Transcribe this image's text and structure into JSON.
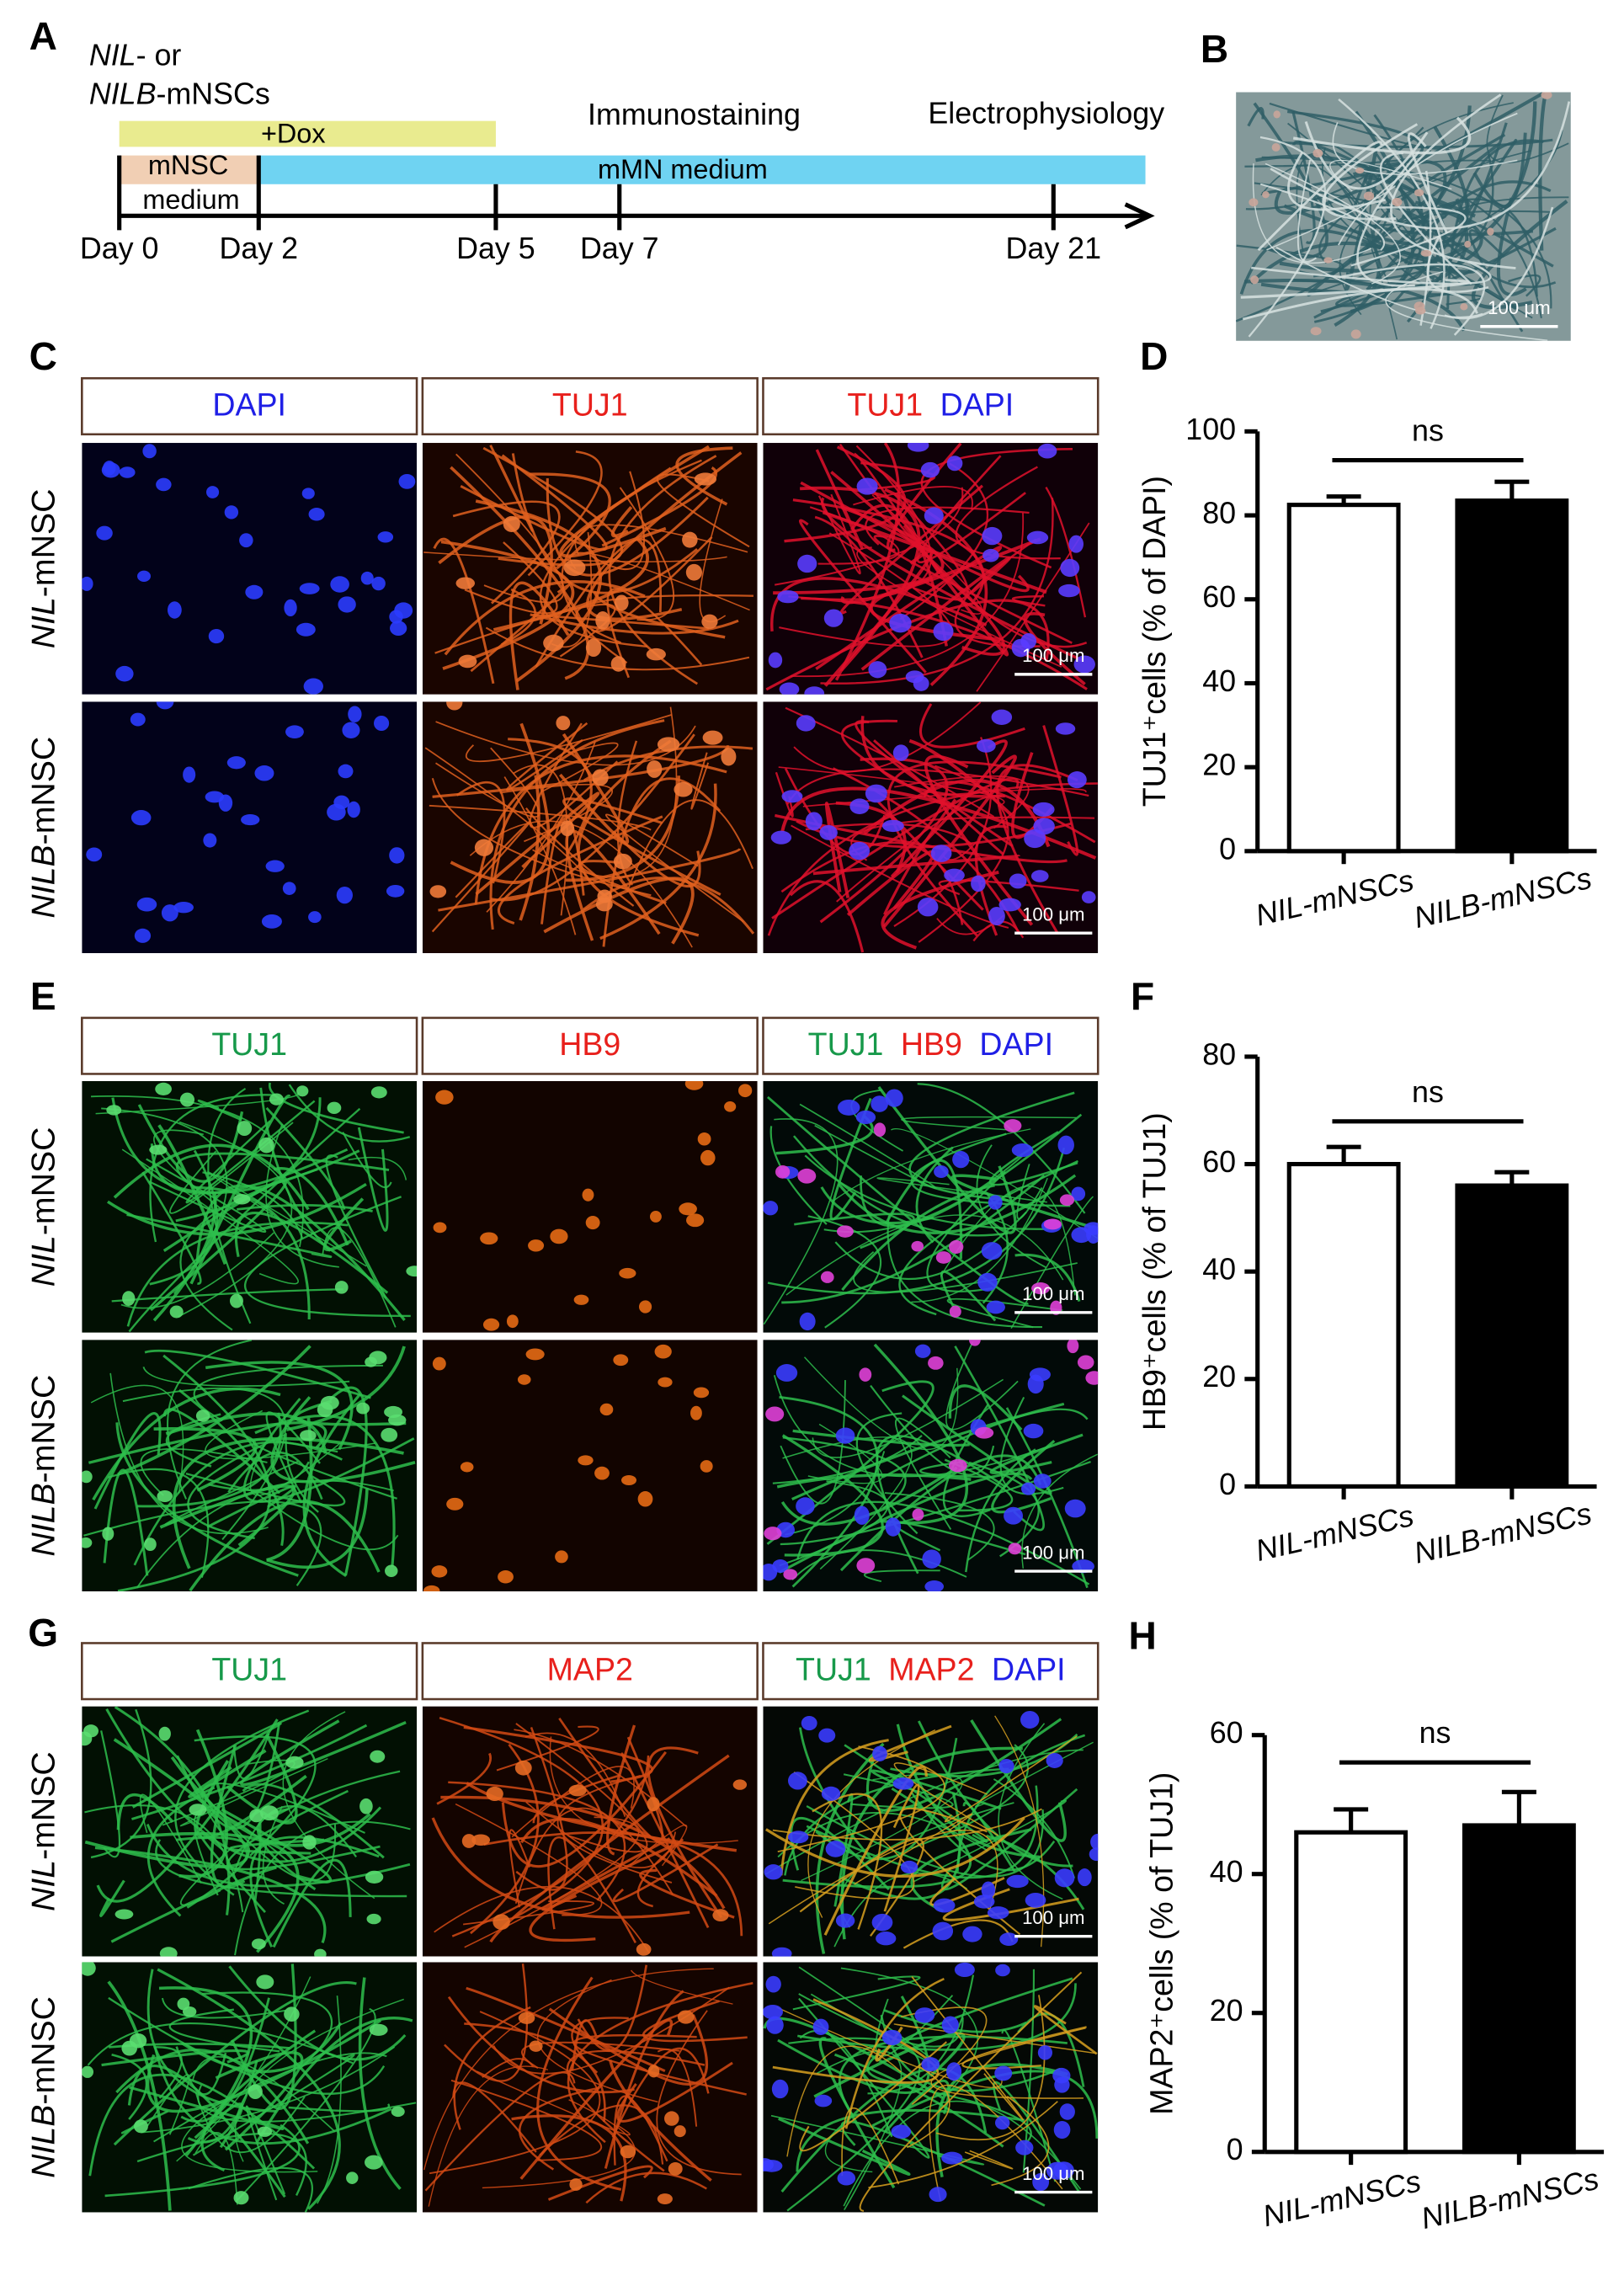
{
  "panel_labels": [
    "A",
    "B",
    "C",
    "D",
    "E",
    "F",
    "G",
    "H"
  ],
  "timeline": {
    "start_cells": [
      {
        "gene": "NIL",
        "rest": "- or"
      },
      {
        "gene": "NILB",
        "rest": "-mNSCs"
      }
    ],
    "dox": "+Dox",
    "nsc_medium": [
      "mNSC",
      "medium"
    ],
    "mn_medium": "mMN medium",
    "events": [
      "Immunostaining",
      "Electrophysiology"
    ],
    "days": [
      "Day 0",
      "Day 2",
      "Day 5",
      "Day 7",
      "Day 21"
    ]
  },
  "scale_bar": "100 μm",
  "image_panels": [
    {
      "headers": [
        [
          {
            "text": "DAPI",
            "color": "#1f1fe6"
          }
        ],
        [
          {
            "text": "TUJ1",
            "color": "#e8201c"
          }
        ],
        [
          {
            "text": "TUJ1",
            "color": "#e8201c"
          },
          {
            "text": "DAPI",
            "color": "#1f1fe6"
          }
        ]
      ],
      "rows": [
        {
          "gene": "NIL",
          "rest": "-mNSC"
        },
        {
          "gene": "NILB",
          "rest": "-mNSC"
        }
      ]
    },
    {
      "headers": [
        [
          {
            "text": "TUJ1",
            "color": "#17994a"
          }
        ],
        [
          {
            "text": "HB9",
            "color": "#e8201c"
          }
        ],
        [
          {
            "text": "TUJ1",
            "color": "#17994a"
          },
          {
            "text": "HB9",
            "color": "#e8201c"
          },
          {
            "text": "DAPI",
            "color": "#1f1fe6"
          }
        ]
      ],
      "rows": [
        {
          "gene": "NIL",
          "rest": "-mNSC"
        },
        {
          "gene": "NILB",
          "rest": "-mNSC"
        }
      ]
    },
    {
      "headers": [
        [
          {
            "text": "TUJ1",
            "color": "#17994a"
          }
        ],
        [
          {
            "text": "MAP2",
            "color": "#e8201c"
          }
        ],
        [
          {
            "text": "TUJ1",
            "color": "#17994a"
          },
          {
            "text": "MAP2",
            "color": "#e8201c"
          },
          {
            "text": "DAPI",
            "color": "#1f1fe6"
          }
        ]
      ],
      "rows": [
        {
          "gene": "NIL",
          "rest": "-mNSC"
        },
        {
          "gene": "NILB",
          "rest": "-mNSC"
        }
      ]
    }
  ],
  "chart_data": [
    {
      "type": "bar",
      "ylabel": "TUJ1⁺cells (% of DAPI)",
      "categories": [
        "NIL-mNSCs",
        "NILB-mNSCs"
      ],
      "values": [
        82.5,
        83.5
      ],
      "errors": [
        2,
        4.5
      ],
      "colors": [
        "#ffffff",
        "#000000"
      ],
      "ylim": [
        0,
        100
      ],
      "yticks": [
        0,
        20,
        40,
        60,
        80,
        100
      ],
      "annotation": "ns"
    },
    {
      "type": "bar",
      "ylabel": "HB9⁺cells (% of TUJ1)",
      "categories": [
        "NIL-mNSCs",
        "NILB-mNSCs"
      ],
      "values": [
        60,
        56
      ],
      "errors": [
        3.2,
        2.5
      ],
      "colors": [
        "#ffffff",
        "#000000"
      ],
      "ylim": [
        0,
        80
      ],
      "yticks": [
        0,
        20,
        40,
        60,
        80
      ],
      "annotation": "ns"
    },
    {
      "type": "bar",
      "ylabel": "MAP2⁺cells (% of TUJ1)",
      "categories": [
        "NIL-mNSCs",
        "NILB-mNSCs"
      ],
      "values": [
        46,
        47
      ],
      "errors": [
        3.3,
        4.8
      ],
      "colors": [
        "#ffffff",
        "#000000"
      ],
      "ylim": [
        0,
        60
      ],
      "yticks": [
        0,
        20,
        40,
        60
      ],
      "annotation": "ns"
    }
  ]
}
